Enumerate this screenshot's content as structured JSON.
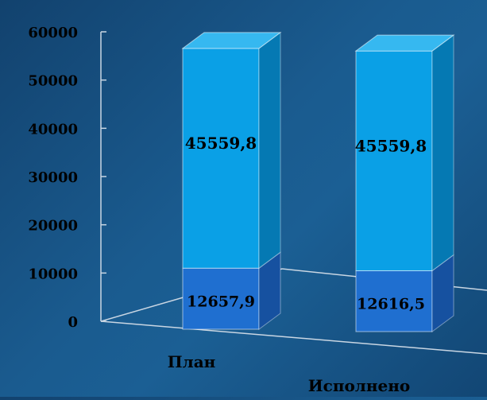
{
  "chart_data": {
    "type": "bar",
    "stacked": true,
    "style": "3d-column",
    "title": "",
    "xlabel": "",
    "ylabel": "",
    "ylim": [
      0,
      60000
    ],
    "ytick_values": [
      0,
      10000,
      20000,
      30000,
      40000,
      50000,
      60000
    ],
    "ytick_labels": [
      "0",
      "10000",
      "20000",
      "30000",
      "40000",
      "50000",
      "60000"
    ],
    "categories": [
      "План",
      "Исполнено"
    ],
    "series": [
      {
        "values": [
          12657.9,
          12616.5
        ],
        "labels": [
          "12657,9",
          "12616,5"
        ],
        "color": "#1f6fd0",
        "side_color": "#1651a0",
        "top_color": "#2a80e0"
      },
      {
        "values": [
          45559.8,
          45559.8
        ],
        "labels": [
          "45559,8",
          "45559,8"
        ],
        "color": "#0aa0e6",
        "side_color": "#0579b3",
        "top_color": "#36b8f0"
      }
    ],
    "grid": false,
    "legend": "none",
    "axis_color": "#c9d6e3",
    "tick_label_color": "#000000",
    "data_label_color": "#000000"
  }
}
